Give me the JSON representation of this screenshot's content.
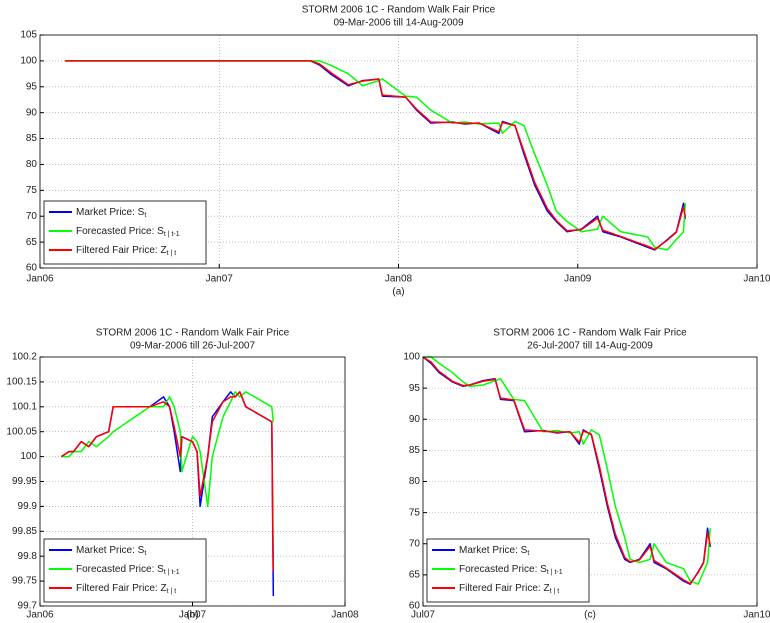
{
  "chart_data": [
    {
      "type": "line",
      "title": "STORM 2006 1C - Random Walk Fair Price",
      "subtitle": "09-Mar-2006 till 14-Aug-2009",
      "xlabel": "(a)",
      "xlim": [
        2006,
        2010
      ],
      "xticks": [
        {
          "value": 2006,
          "label": "Jan06"
        },
        {
          "value": 2007,
          "label": "Jan07"
        },
        {
          "value": 2008,
          "label": "Jan08"
        },
        {
          "value": 2009,
          "label": "Jan09"
        },
        {
          "value": 2010,
          "label": "Jan10"
        }
      ],
      "ylim": [
        60,
        105
      ],
      "yticks": [
        60,
        65,
        70,
        75,
        80,
        85,
        90,
        95,
        100,
        105
      ],
      "grid": true,
      "legend": "lower left",
      "x": [
        2006.14,
        2007.51,
        2007.56,
        2007.62,
        2007.72,
        2007.8,
        2007.89,
        2007.91,
        2008.04,
        2008.1,
        2008.18,
        2008.3,
        2008.37,
        2008.45,
        2008.56,
        2008.58,
        2008.65,
        2008.7,
        2008.76,
        2008.83,
        2008.88,
        2008.94,
        2009.02,
        2009.11,
        2009.14,
        2009.24,
        2009.39,
        2009.43,
        2009.5,
        2009.55,
        2009.59,
        2009.6
      ],
      "series": [
        {
          "name": "Market Price: S",
          "name_sub": "t",
          "color": "#0000ff",
          "values": [
            100,
            100,
            99.2,
            97.5,
            95.2,
            96.2,
            96.5,
            93.2,
            93,
            90.5,
            88,
            88.2,
            87.8,
            88,
            86,
            88.3,
            87.5,
            82,
            76,
            71,
            69,
            67,
            67.5,
            70,
            67,
            66,
            64,
            63.5,
            65.5,
            67,
            72.5,
            69.5
          ]
        },
        {
          "name": "Forecasted Price: S",
          "name_sub": "t | t-1",
          "color": "#00ff00",
          "values": [
            100,
            100,
            100,
            99.2,
            97.5,
            95.2,
            96.2,
            96.5,
            93.2,
            93,
            90.5,
            88,
            88.2,
            87.8,
            88,
            86,
            88.3,
            87.5,
            82,
            76,
            71,
            69,
            67,
            67.5,
            70,
            67,
            66,
            64,
            63.5,
            65.5,
            67,
            72.5
          ]
        },
        {
          "name": "Filtered Fair Price: Z",
          "name_sub": "t | t",
          "color": "#ff0000",
          "values": [
            100,
            100,
            99.4,
            97.8,
            95.4,
            96.1,
            96.5,
            93.4,
            93,
            90.7,
            88.2,
            88.1,
            87.9,
            88,
            86.3,
            88.1,
            87.5,
            82.5,
            76.5,
            71.5,
            69.2,
            67.2,
            67.4,
            69.6,
            67.3,
            66.1,
            64.2,
            63.6,
            65.4,
            66.9,
            71.8,
            69.8
          ]
        }
      ]
    },
    {
      "type": "line",
      "title": "STORM 2006 1C - Random Walk Fair Price",
      "subtitle": "09-Mar-2006 till 26-Jul-2007",
      "xlabel": "(b)",
      "xlim": [
        2006,
        2008
      ],
      "xticks": [
        {
          "value": 2006,
          "label": "Jan06"
        },
        {
          "value": 2007,
          "label": "Jan07"
        },
        {
          "value": 2008,
          "label": "Jan08"
        }
      ],
      "ylim": [
        99.7,
        100.2
      ],
      "yticks": [
        99.7,
        99.75,
        99.8,
        99.85,
        99.9,
        99.95,
        100,
        100.05,
        100.1,
        100.15,
        100.2
      ],
      "grid": true,
      "legend": "lower left",
      "x": [
        2006.14,
        2006.19,
        2006.22,
        2006.27,
        2006.32,
        2006.37,
        2006.45,
        2006.48,
        2006.72,
        2006.81,
        2006.85,
        2006.88,
        2006.92,
        2006.93,
        2007.0,
        2007.03,
        2007.05,
        2007.1,
        2007.13,
        2007.2,
        2007.25,
        2007.28,
        2007.31,
        2007.35,
        2007.52,
        2007.53
      ],
      "series": [
        {
          "name": "Market Price: S",
          "name_sub": "t",
          "color": "#0000ff",
          "values": [
            100,
            100.01,
            100.01,
            100.03,
            100.02,
            100.04,
            100.05,
            100.1,
            100.1,
            100.12,
            100.1,
            100.05,
            99.97,
            100.04,
            100.03,
            100.01,
            99.9,
            100,
            100.08,
            100.11,
            100.13,
            100.12,
            100.13,
            100.1,
            100.07,
            99.72
          ]
        },
        {
          "name": "Forecasted Price: S",
          "name_sub": "t | t-1",
          "color": "#00ff00",
          "values": [
            100,
            100,
            100.01,
            100.01,
            100.03,
            100.02,
            100.04,
            100.05,
            100.1,
            100.1,
            100.12,
            100.1,
            100.05,
            99.97,
            100.04,
            100.03,
            100.01,
            99.9,
            100,
            100.08,
            100.11,
            100.13,
            100.12,
            100.13,
            100.1,
            100.07
          ]
        },
        {
          "name": "Filtered Fair Price: Z",
          "name_sub": "t | t",
          "color": "#ff0000",
          "values": [
            100,
            100.01,
            100.01,
            100.03,
            100.02,
            100.04,
            100.05,
            100.1,
            100.1,
            100.11,
            100.1,
            100.06,
            100,
            100.04,
            100.03,
            100.01,
            99.92,
            100,
            100.07,
            100.11,
            100.12,
            100.12,
            100.13,
            100.1,
            100.07,
            99.77
          ]
        }
      ]
    },
    {
      "type": "line",
      "title": "STORM 2006 1C - Random Walk Fair Price",
      "subtitle": "26-Jul-2007 till 14-Aug-2009",
      "xlabel": "(c)",
      "xlim": [
        2007.5,
        2010
      ],
      "xticks": [
        {
          "value": 2007.5,
          "label": "Jul07"
        },
        {
          "value": 2010,
          "label": "Jan10"
        }
      ],
      "ylim": [
        60,
        100
      ],
      "yticks": [
        60,
        65,
        70,
        75,
        80,
        85,
        90,
        95,
        100
      ],
      "grid": true,
      "legend": "lower left",
      "x": [
        2007.5,
        2007.56,
        2007.62,
        2007.72,
        2007.8,
        2007.85,
        2007.95,
        2008.04,
        2008.08,
        2008.18,
        2008.26,
        2008.4,
        2008.5,
        2008.6,
        2008.67,
        2008.7,
        2008.76,
        2008.82,
        2008.88,
        2008.94,
        2009.01,
        2009.05,
        2009.12,
        2009.2,
        2009.23,
        2009.32,
        2009.45,
        2009.5,
        2009.56,
        2009.6,
        2009.63,
        2009.65
      ],
      "series": [
        {
          "name": "Market Price: S",
          "name_sub": "t",
          "color": "#0000ff",
          "values": [
            100,
            99,
            97.5,
            96,
            95.3,
            95.5,
            96.2,
            96.5,
            93.2,
            93,
            88,
            88.2,
            87.8,
            88,
            86,
            88.3,
            87.5,
            82,
            76,
            71,
            67.5,
            67,
            67.5,
            70,
            67,
            66,
            64,
            63.5,
            65.5,
            67,
            72.5,
            69.5
          ]
        },
        {
          "name": "Forecasted Price: S",
          "name_sub": "t | t-1",
          "color": "#00ff00",
          "values": [
            100,
            100,
            99,
            97.5,
            96,
            95.3,
            95.5,
            96.2,
            96.5,
            93.2,
            93,
            88,
            88.2,
            87.8,
            88,
            86,
            88.3,
            87.5,
            82,
            76,
            71,
            67.5,
            67,
            67.5,
            70,
            67,
            66,
            64,
            63.5,
            65.5,
            67,
            72.5
          ]
        },
        {
          "name": "Filtered Fair Price: Z",
          "name_sub": "t | t",
          "color": "#ff0000",
          "values": [
            100,
            99.2,
            97.7,
            96.1,
            95.4,
            95.5,
            96.1,
            96.4,
            93.4,
            93.1,
            88.3,
            88.1,
            87.9,
            88,
            86.3,
            88.1,
            87.6,
            82.5,
            76.5,
            71.5,
            67.8,
            67.1,
            67.4,
            69.6,
            67.3,
            66.1,
            64.2,
            63.6,
            65.4,
            66.9,
            71.8,
            69.8
          ]
        }
      ]
    }
  ]
}
